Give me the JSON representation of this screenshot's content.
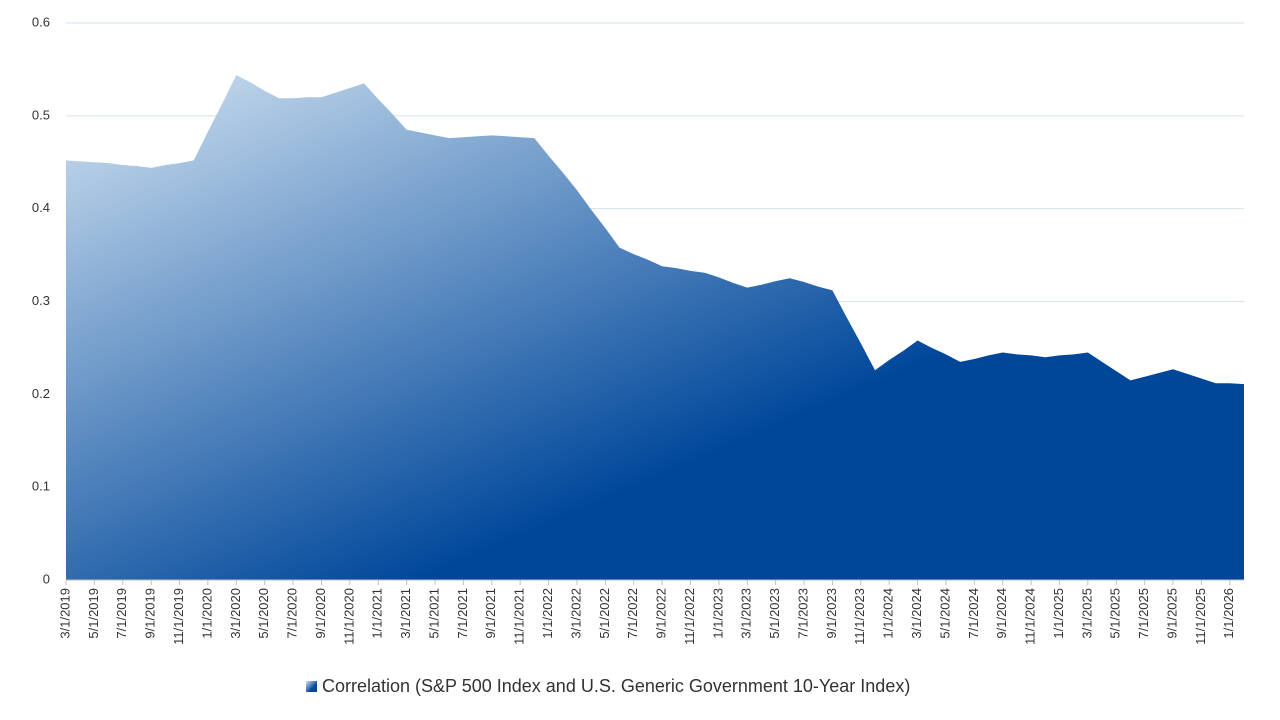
{
  "chart_data": {
    "type": "area",
    "categories": [
      "3/1/2019",
      null,
      "5/1/2019",
      null,
      "7/1/2019",
      null,
      "9/1/2019",
      null,
      "11/1/2019",
      null,
      "1/1/2020",
      null,
      "3/1/2020",
      null,
      "5/1/2020",
      null,
      "7/1/2020",
      null,
      "9/1/2020",
      null,
      "11/1/2020",
      null,
      "1/1/2021",
      null,
      "3/1/2021",
      null,
      "5/1/2021",
      null,
      "7/1/2021",
      null,
      "9/1/2021",
      null,
      "11/1/2021",
      null,
      "1/1/2022",
      null,
      "3/1/2022",
      null,
      "5/1/2022",
      null,
      "7/1/2022",
      null,
      "9/1/2022",
      null,
      "11/1/2022",
      null,
      "1/1/2023",
      null,
      "3/1/2023",
      null,
      "5/1/2023",
      null,
      "7/1/2023",
      null,
      "9/1/2023",
      null,
      "11/1/2023",
      null,
      "1/1/2024",
      null,
      "3/1/2024",
      null,
      "5/1/2024",
      null,
      "7/1/2024",
      null,
      "9/1/2024",
      null,
      "11/1/2024",
      null,
      "1/1/2025",
      null,
      "3/1/2025",
      null,
      "5/1/2025",
      null,
      "7/1/2025",
      null,
      "9/1/2025",
      null,
      "11/1/2025",
      null,
      "1/1/2026",
      null
    ],
    "series": [
      {
        "name": "Correlation (S&P 500 Index and U.S. Generic Government 10-Year Index)",
        "color": [
          "#d3e4f3",
          "#00479a"
        ],
        "values": [
          0.452,
          0.451,
          0.45,
          0.449,
          0.447,
          0.446,
          0.444,
          0.447,
          0.449,
          0.452,
          0.483,
          0.513,
          0.544,
          0.536,
          0.527,
          0.519,
          0.519,
          0.52,
          0.52,
          0.525,
          0.53,
          0.535,
          0.518,
          0.502,
          0.485,
          0.482,
          0.479,
          0.476,
          0.477,
          0.478,
          0.479,
          0.478,
          0.477,
          0.476,
          0.457,
          0.439,
          0.42,
          0.399,
          0.379,
          0.358,
          0.351,
          0.345,
          0.338,
          0.336,
          0.333,
          0.331,
          0.326,
          0.32,
          0.315,
          0.318,
          0.322,
          0.325,
          0.321,
          0.316,
          0.312,
          0.283,
          0.255,
          0.226,
          0.237,
          0.247,
          0.258,
          0.25,
          0.243,
          0.235,
          0.238,
          0.242,
          0.245,
          0.243,
          0.242,
          0.24,
          0.242,
          0.243,
          0.245,
          0.235,
          0.225,
          0.215,
          0.219,
          0.223,
          0.227,
          0.222,
          0.217,
          0.212,
          0.212,
          0.211
        ]
      }
    ],
    "ylim": [
      0,
      0.6
    ],
    "yticks": [
      0,
      0.1,
      0.2,
      0.3,
      0.4,
      0.5,
      0.6
    ],
    "grid": true,
    "legend": "bottom"
  }
}
